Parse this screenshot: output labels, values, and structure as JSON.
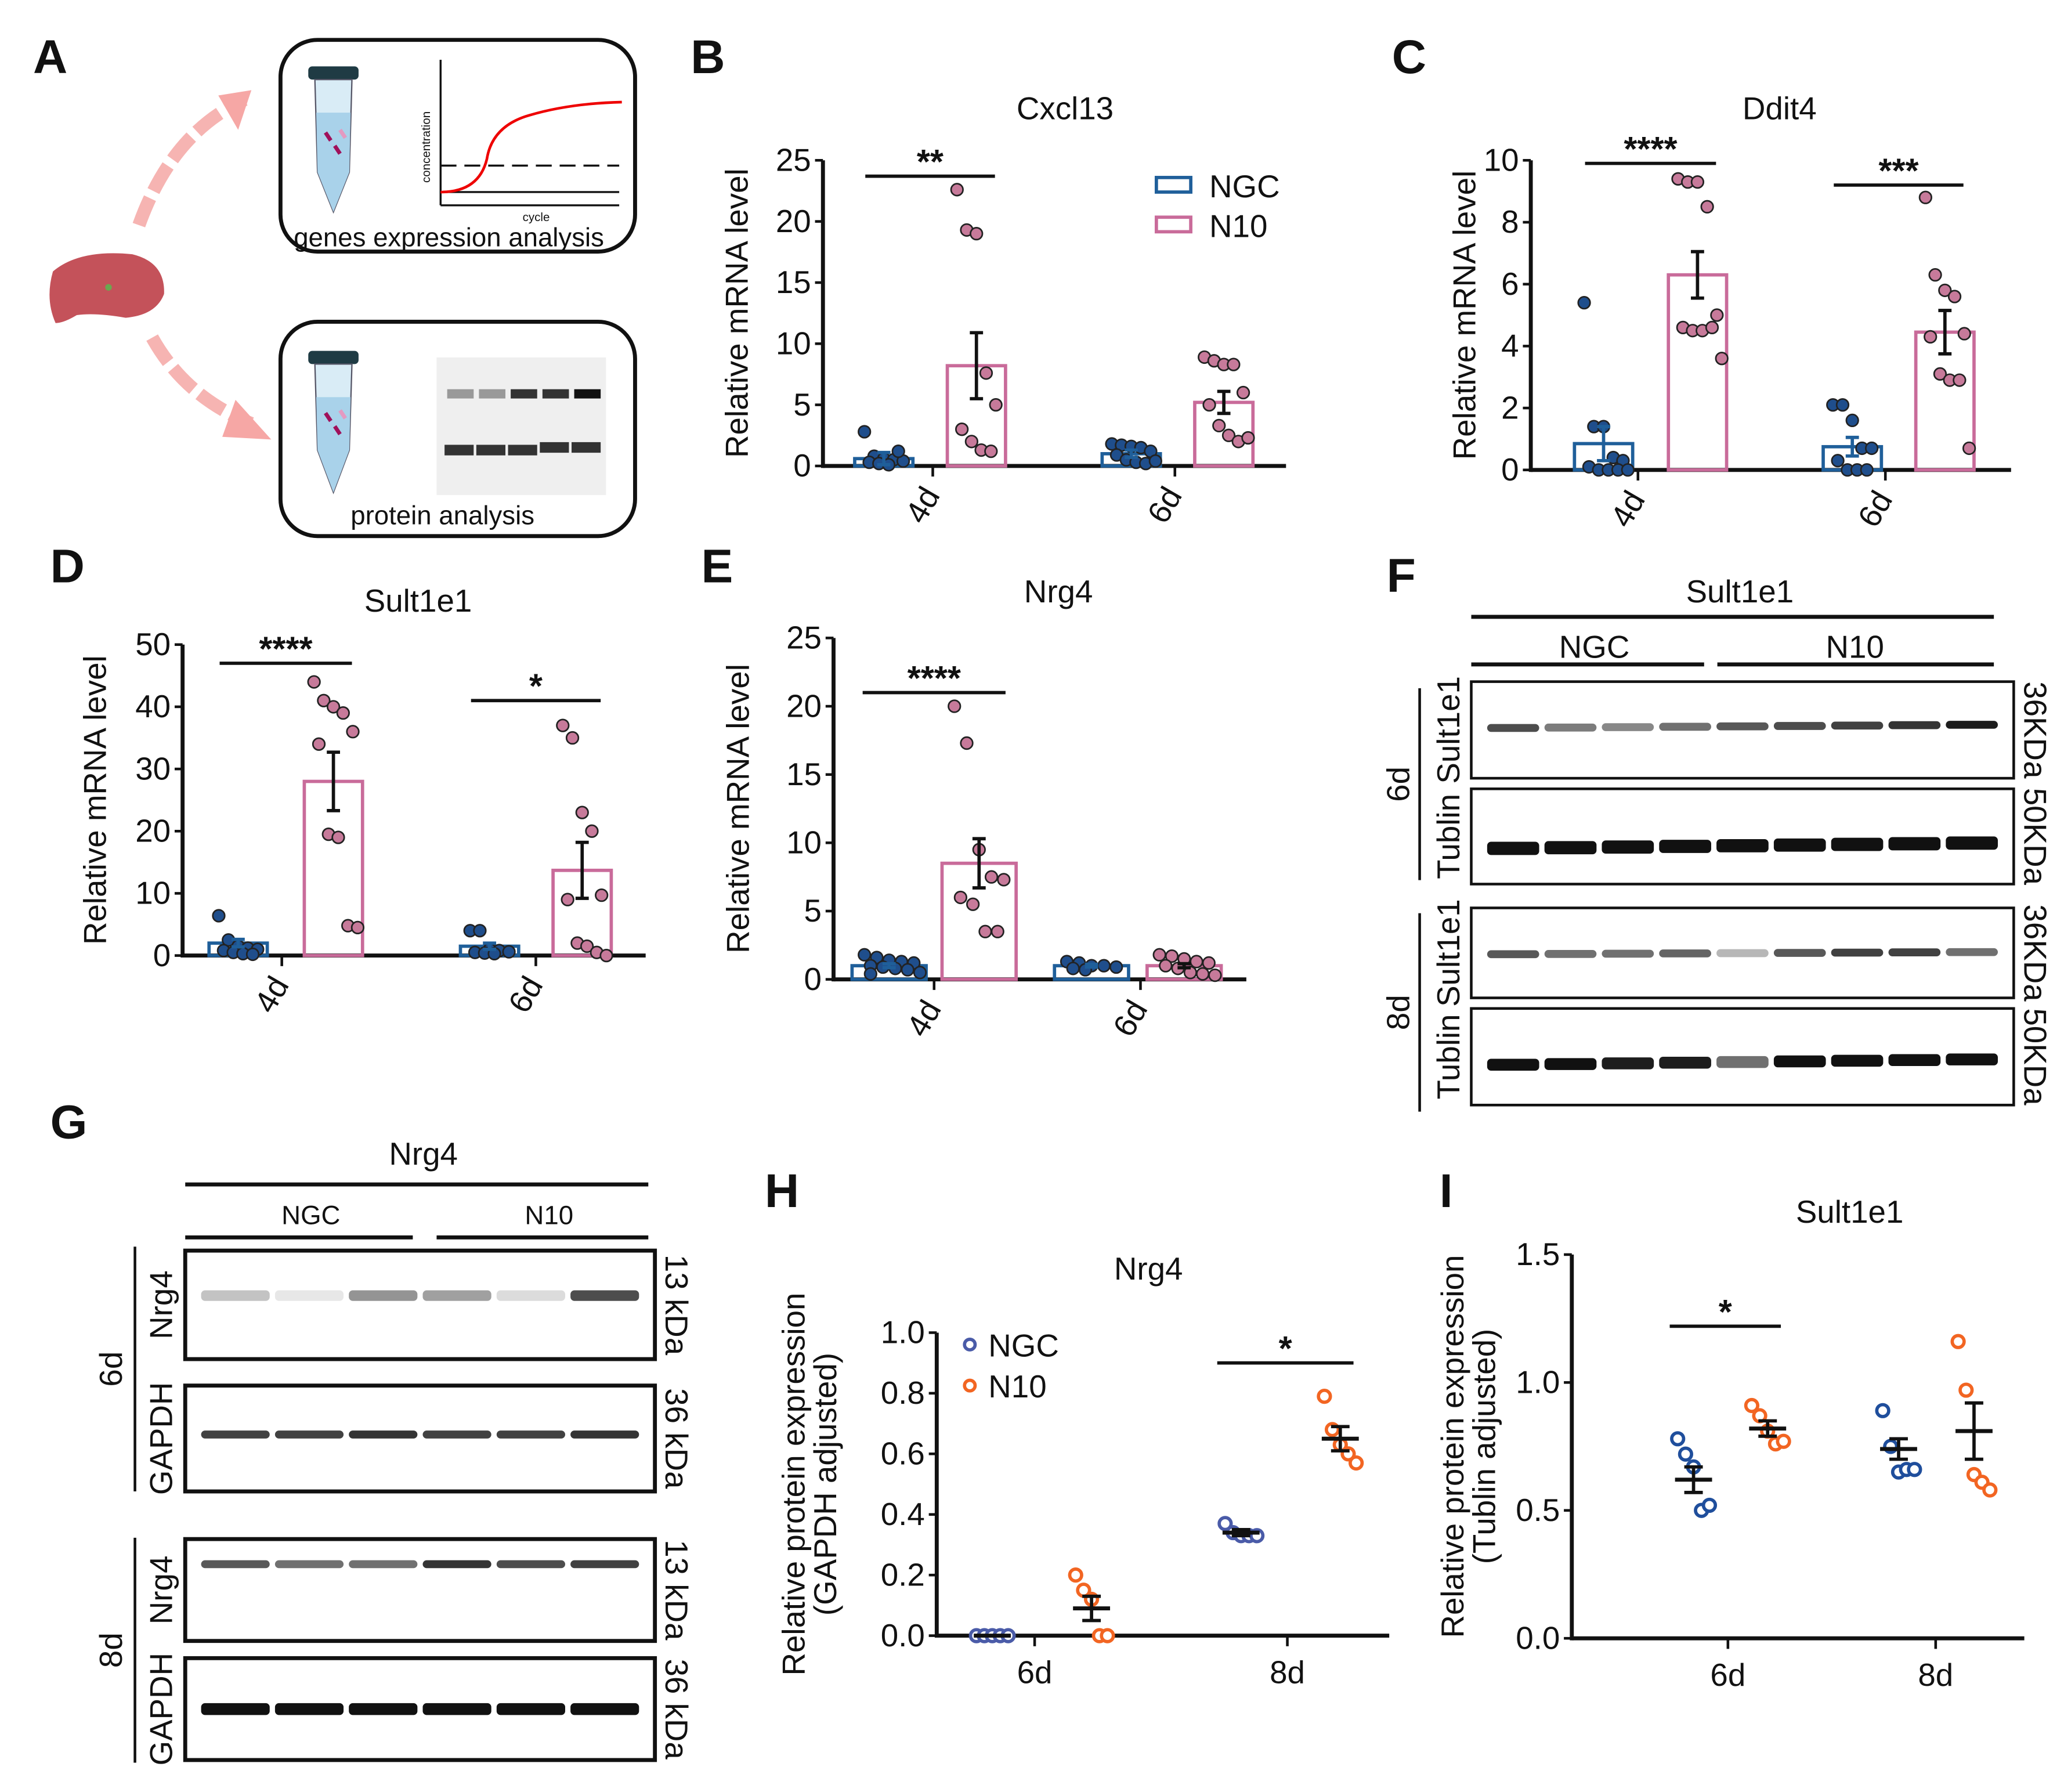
{
  "panel_letters": {
    "A": "A",
    "B": "B",
    "C": "C",
    "D": "D",
    "E": "E",
    "F": "F",
    "G": "G",
    "H": "H",
    "I": "I"
  },
  "panel_a": {
    "top_box_label": "genes expression analysis",
    "bottom_box_label": "protein analysis",
    "curve_ylabel": "concentration",
    "curve_xlabel": "cycle"
  },
  "panel_f": {
    "title": "Sult1e1",
    "group1": "NGC",
    "group2": "N10",
    "timepoints": [
      "6d",
      "8d"
    ],
    "row_labels": [
      "Sult1e1",
      "Tublin"
    ],
    "size_labels": [
      "36KDa",
      "50KDa"
    ]
  },
  "panel_g": {
    "title": "Nrg4",
    "group1": "NGC",
    "group2": "N10",
    "timepoints": [
      "6d",
      "8d"
    ],
    "row_labels": [
      "Nrg4",
      "GAPDH"
    ],
    "size_labels": [
      "13 kDa",
      "36 kDa"
    ]
  },
  "colors": {
    "ngc_bar": "#1f5f9a",
    "ngc_dot": "#1f4e8c",
    "n10_bar": "#c96b9a",
    "n10_dot": "#c77a9a",
    "ngc_h": "#4a5ba8",
    "ngc_i": "#1f4e9c",
    "n10_open": "#f26522"
  },
  "chart_data": [
    {
      "id": "B",
      "type": "bar",
      "title": "Cxcl13",
      "ylabel": "Relative mRNA level",
      "xlabel": "",
      "ylim": [
        0,
        25
      ],
      "yticks": [
        0,
        5,
        10,
        15,
        20,
        25
      ],
      "categories": [
        "4d",
        "6d"
      ],
      "legend": [
        "NGC",
        "N10"
      ],
      "legend_placement": "top-right",
      "series": [
        {
          "name": "NGC",
          "groups": [
            {
              "mean": 0.6,
              "sem": 0.5,
              "points": [
                2.8,
                0.8,
                0.6,
                0.5,
                0.4,
                0.3,
                0.2,
                0.1,
                1.2
              ]
            },
            {
              "mean": 1.0,
              "sem": 0.3,
              "points": [
                1.8,
                1.7,
                1.6,
                1.5,
                1.2,
                0.9,
                0.5,
                0.3,
                0.2,
                0.4
              ]
            }
          ]
        },
        {
          "name": "N10",
          "groups": [
            {
              "mean": 8.2,
              "sem": 2.7,
              "points": [
                22.6,
                19.3,
                19.0,
                7.6,
                5.0,
                3.0,
                2.0,
                1.3,
                1.2
              ]
            },
            {
              "mean": 5.2,
              "sem": 0.9,
              "points": [
                8.9,
                8.6,
                8.3,
                8.3,
                6.0,
                5.0,
                3.3,
                2.5,
                2.0,
                2.3
              ]
            }
          ]
        }
      ],
      "significance": [
        {
          "category": "4d",
          "label": "**",
          "y": 23.7
        }
      ]
    },
    {
      "id": "C",
      "type": "bar",
      "title": "Ddit4",
      "ylabel": "Relative mRNA level",
      "xlabel": "",
      "ylim": [
        0,
        10
      ],
      "yticks": [
        0,
        2,
        4,
        6,
        8,
        10
      ],
      "categories": [
        "4d",
        "6d"
      ],
      "series": [
        {
          "name": "NGC",
          "groups": [
            {
              "mean": 0.85,
              "sem": 0.55,
              "points": [
                5.4,
                1.4,
                1.4,
                0.4,
                0.3,
                0.1,
                0,
                0,
                0,
                0
              ]
            },
            {
              "mean": 0.75,
              "sem": 0.3,
              "points": [
                2.1,
                2.1,
                1.6,
                0.7,
                0.7,
                0.3,
                0,
                0,
                0
              ]
            }
          ]
        },
        {
          "name": "N10",
          "groups": [
            {
              "mean": 6.3,
              "sem": 0.75,
              "points": [
                9.4,
                9.3,
                9.3,
                8.5,
                5.0,
                4.6,
                4.5,
                4.5,
                4.6,
                3.6
              ]
            },
            {
              "mean": 4.45,
              "sem": 0.7,
              "points": [
                8.8,
                6.3,
                5.8,
                5.6,
                4.4,
                4.3,
                3.1,
                2.9,
                2.9,
                0.7
              ]
            }
          ]
        }
      ],
      "significance": [
        {
          "category": "4d",
          "label": "****",
          "y": 9.9
        },
        {
          "category": "6d",
          "label": "***",
          "y": 9.2
        }
      ]
    },
    {
      "id": "D",
      "type": "bar",
      "title": "Sult1e1",
      "ylabel": "Relative mRNA level",
      "xlabel": "",
      "ylim": [
        0,
        50
      ],
      "yticks": [
        0,
        10,
        20,
        30,
        40,
        50
      ],
      "categories": [
        "4d",
        "6d"
      ],
      "series": [
        {
          "name": "NGC",
          "groups": [
            {
              "mean": 2.0,
              "sem": 0.6,
              "points": [
                6.4,
                2.5,
                1.5,
                1.2,
                1.0,
                0.8,
                0.5,
                0.3,
                0.2
              ]
            },
            {
              "mean": 1.5,
              "sem": 0.5,
              "points": [
                4.0,
                4.0,
                1.0,
                0.8,
                0.6,
                0.5,
                0.4,
                0.3
              ]
            }
          ]
        },
        {
          "name": "N10",
          "groups": [
            {
              "mean": 28.0,
              "sem": 4.7,
              "points": [
                44,
                41,
                40,
                39,
                36,
                34,
                19.5,
                19,
                4.8,
                4.5
              ]
            },
            {
              "mean": 13.7,
              "sem": 4.5,
              "points": [
                37,
                35,
                23,
                20,
                9.7,
                9.0,
                2.0,
                1.5,
                0.5,
                0
              ]
            }
          ]
        }
      ],
      "significance": [
        {
          "category": "4d",
          "label": "****",
          "y": 47
        },
        {
          "category": "6d",
          "label": "*",
          "y": 41
        }
      ]
    },
    {
      "id": "E",
      "type": "bar",
      "title": "Nrg4",
      "ylabel": "Relative mRNA level",
      "xlabel": "",
      "ylim": [
        0,
        25
      ],
      "yticks": [
        0,
        5,
        10,
        15,
        20,
        25
      ],
      "categories": [
        "4d",
        "6d"
      ],
      "series": [
        {
          "name": "NGC",
          "groups": [
            {
              "mean": 1.0,
              "sem": 0.15,
              "points": [
                1.8,
                1.6,
                1.4,
                1.3,
                1.2,
                1.0,
                0.9,
                0.8,
                0.7,
                0.5,
                0.4
              ]
            },
            {
              "mean": 1.0,
              "sem": 0.1,
              "points": [
                1.3,
                1.2,
                1.0,
                1.0,
                0.9,
                0.8,
                0.7
              ]
            }
          ]
        },
        {
          "name": "N10",
          "groups": [
            {
              "mean": 8.5,
              "sem": 1.8,
              "points": [
                20,
                17.3,
                9.5,
                7.5,
                7.3,
                6.0,
                5.5,
                3.5,
                3.5
              ]
            },
            {
              "mean": 1.0,
              "sem": 0.15,
              "points": [
                1.8,
                1.7,
                1.5,
                1.3,
                1.2,
                1.0,
                0.8,
                0.5,
                0.4,
                0.3
              ]
            }
          ]
        }
      ],
      "significance": [
        {
          "category": "4d",
          "label": "****",
          "y": 21
        }
      ]
    },
    {
      "id": "H",
      "type": "scatter",
      "title": "Nrg4",
      "ylabel": [
        "Relative protein expression",
        "(GAPDH adjusted)"
      ],
      "xlabel": "",
      "ylim": [
        0,
        1.0
      ],
      "yticks": [
        0,
        0.2,
        0.4,
        0.6,
        0.8,
        1.0
      ],
      "ytick_labels": [
        "0.0",
        "0.2",
        "0.4",
        "0.6",
        "0.8",
        "1.0"
      ],
      "categories": [
        "6d",
        "8d"
      ],
      "legend": [
        "NGC",
        "N10"
      ],
      "legend_placement": "top-left",
      "series": [
        {
          "name": "NGC",
          "groups": [
            {
              "mean": 0,
              "sem": 0,
              "points": [
                0,
                0,
                0,
                0,
                0
              ]
            },
            {
              "mean": 0.34,
              "sem": 0.01,
              "points": [
                0.37,
                0.34,
                0.33,
                0.33,
                0.33
              ]
            }
          ]
        },
        {
          "name": "N10",
          "groups": [
            {
              "mean": 0.09,
              "sem": 0.04,
              "points": [
                0.2,
                0.15,
                0.12,
                0,
                0
              ]
            },
            {
              "mean": 0.65,
              "sem": 0.04,
              "points": [
                0.79,
                0.68,
                0.63,
                0.6,
                0.57
              ]
            }
          ]
        }
      ],
      "significance": [
        {
          "category": "8d",
          "label": "*",
          "y": 0.9
        }
      ]
    },
    {
      "id": "I",
      "type": "scatter",
      "title": "Sult1e1",
      "ylabel": [
        "Relative protein expression",
        "(Tublin adjusted)"
      ],
      "xlabel": "",
      "ylim": [
        0,
        1.5
      ],
      "yticks": [
        0,
        0.5,
        1.0,
        1.5
      ],
      "ytick_labels": [
        "0.0",
        "0.5",
        "1.0",
        "1.5"
      ],
      "categories": [
        "6d",
        "8d"
      ],
      "series": [
        {
          "name": "NGC",
          "groups": [
            {
              "mean": 0.62,
              "sem": 0.05,
              "points": [
                0.78,
                0.72,
                0.67,
                0.5,
                0.52
              ]
            },
            {
              "mean": 0.74,
              "sem": 0.04,
              "points": [
                0.89,
                0.75,
                0.65,
                0.66,
                0.66
              ]
            }
          ]
        },
        {
          "name": "N10",
          "groups": [
            {
              "mean": 0.82,
              "sem": 0.03,
              "points": [
                0.91,
                0.87,
                0.81,
                0.76,
                0.77
              ]
            },
            {
              "mean": 0.81,
              "sem": 0.11,
              "points": [
                1.16,
                0.97,
                0.64,
                0.61,
                0.58
              ]
            }
          ]
        }
      ],
      "significance": [
        {
          "category": "6d",
          "label": "*",
          "y": 1.22
        }
      ]
    }
  ]
}
